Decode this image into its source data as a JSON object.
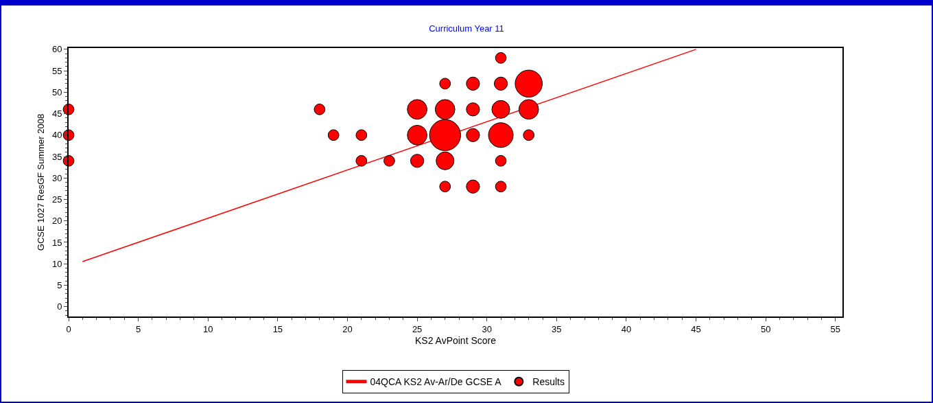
{
  "chart_data": {
    "type": "bubble",
    "title": "Curriculum Year 11",
    "xlabel": "KS2 AvPoint Score",
    "ylabel": "GCSE 1027 ResGF Summer 2008",
    "xlim": [
      0,
      55.5
    ],
    "ylim": [
      -2.3,
      60.3
    ],
    "xticks": [
      0,
      5,
      10,
      15,
      20,
      25,
      30,
      35,
      40,
      45,
      50,
      55
    ],
    "yticks": [
      0,
      5,
      10,
      15,
      20,
      25,
      30,
      35,
      40,
      45,
      50,
      55,
      60
    ],
    "grid": false,
    "legend": "bottom",
    "relative": false,
    "series": [
      {
        "name": "04QCA KS2 Av-Ar/De GCSE A",
        "type": "line",
        "color": "#ff0000",
        "line_style": "solid",
        "marker": "none",
        "x": [
          1,
          45
        ],
        "values": [
          10.5,
          60
        ]
      },
      {
        "name": "Results",
        "color": "#ff0000",
        "marker": "circle",
        "x": [
          0,
          0,
          0,
          18,
          19,
          21,
          21,
          23,
          25,
          25,
          25,
          27,
          27,
          27,
          27,
          27,
          29,
          29,
          29,
          29,
          31,
          31,
          31,
          31,
          31,
          31,
          33,
          33,
          33
        ],
        "values": [
          46,
          40,
          34,
          46,
          40,
          40,
          34,
          34,
          46,
          40,
          34,
          52,
          46,
          40,
          34,
          28,
          52,
          46,
          40,
          28,
          58,
          52,
          46,
          40,
          34,
          28,
          52,
          46,
          40
        ],
        "sizes": [
          0.12,
          0.12,
          0.12,
          0.12,
          0.12,
          0.12,
          0.12,
          0.12,
          0.4,
          0.4,
          0.18,
          0.12,
          0.4,
          1,
          0.33,
          0.12,
          0.18,
          0.18,
          0.18,
          0.18,
          0.12,
          0.18,
          0.33,
          0.63,
          0.12,
          0.12,
          0.76,
          0.4,
          0.12
        ]
      }
    ]
  }
}
